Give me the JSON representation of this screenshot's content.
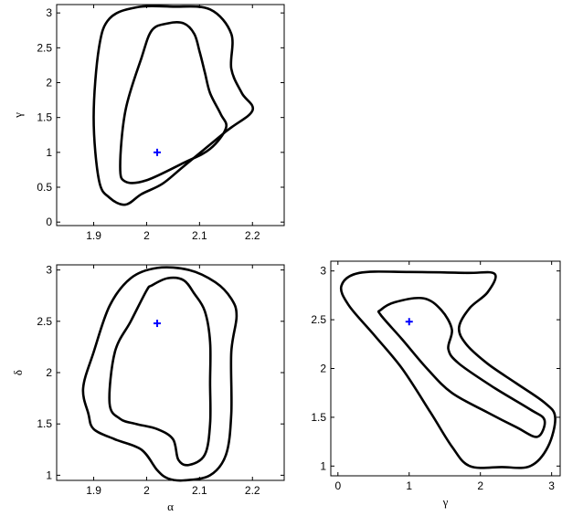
{
  "chart_data": [
    {
      "type": "contour",
      "xlabel": "",
      "ylabel": "γ",
      "xlim": [
        1.83,
        2.26
      ],
      "ylim": [
        -0.05,
        3.12
      ],
      "xticks": [
        "1.9",
        "2",
        "2.1",
        "2.2"
      ],
      "yticks": [
        "0",
        "0.5",
        "1",
        "1.5",
        "2",
        "2.5",
        "3"
      ],
      "xtick_values": [
        1.9,
        2.0,
        2.1,
        2.2
      ],
      "ytick_values": [
        0,
        0.5,
        1,
        1.5,
        2,
        2.5,
        3
      ],
      "marker": {
        "x": 2.02,
        "y": 1.0,
        "symbol": "+",
        "color": "#0000ff"
      },
      "contours": [
        {
          "level": "outer",
          "points": [
            [
              1.93,
              2.92
            ],
            [
              1.98,
              3.08
            ],
            [
              2.05,
              3.09
            ],
            [
              2.12,
              3.05
            ],
            [
              2.16,
              2.7
            ],
            [
              2.16,
              2.2
            ],
            [
              2.18,
              1.85
            ],
            [
              2.2,
              1.6
            ],
            [
              2.15,
              1.3
            ],
            [
              2.07,
              0.8
            ],
            [
              2.03,
              0.55
            ],
            [
              1.99,
              0.4
            ],
            [
              1.96,
              0.25
            ],
            [
              1.93,
              0.35
            ],
            [
              1.91,
              0.6
            ],
            [
              1.9,
              1.5
            ],
            [
              1.91,
              2.5
            ],
            [
              1.93,
              2.92
            ]
          ]
        },
        {
          "level": "inner",
          "points": [
            [
              2.01,
              2.75
            ],
            [
              2.04,
              2.85
            ],
            [
              2.07,
              2.85
            ],
            [
              2.09,
              2.7
            ],
            [
              2.1,
              2.45
            ],
            [
              2.11,
              2.15
            ],
            [
              2.12,
              1.85
            ],
            [
              2.14,
              1.55
            ],
            [
              2.15,
              1.35
            ],
            [
              2.12,
              1.05
            ],
            [
              2.07,
              0.85
            ],
            [
              2.0,
              0.6
            ],
            [
              1.96,
              0.58
            ],
            [
              1.95,
              0.8
            ],
            [
              1.96,
              1.6
            ],
            [
              1.99,
              2.35
            ],
            [
              2.01,
              2.75
            ]
          ]
        }
      ]
    },
    {
      "type": "contour",
      "xlabel": "α",
      "ylabel": "δ",
      "xlim": [
        1.83,
        2.26
      ],
      "ylim": [
        0.95,
        3.05
      ],
      "xticks": [
        "1.9",
        "2",
        "2.1",
        "2.2"
      ],
      "yticks": [
        "1",
        "1.5",
        "2",
        "2.5",
        "3"
      ],
      "xtick_values": [
        1.9,
        2.0,
        2.1,
        2.2
      ],
      "ytick_values": [
        1,
        1.5,
        2,
        2.5,
        3
      ],
      "marker": {
        "x": 2.02,
        "y": 2.48,
        "symbol": "+",
        "color": "#0000ff"
      },
      "contours": [
        {
          "level": "outer",
          "points": [
            [
              1.93,
              2.65
            ],
            [
              1.97,
              2.92
            ],
            [
              2.02,
              3.02
            ],
            [
              2.08,
              3.0
            ],
            [
              2.13,
              2.88
            ],
            [
              2.16,
              2.72
            ],
            [
              2.17,
              2.55
            ],
            [
              2.16,
              2.2
            ],
            [
              2.16,
              1.6
            ],
            [
              2.15,
              1.2
            ],
            [
              2.12,
              1.0
            ],
            [
              2.07,
              0.95
            ],
            [
              2.04,
              0.97
            ],
            [
              2.02,
              1.05
            ],
            [
              1.99,
              1.25
            ],
            [
              1.94,
              1.35
            ],
            [
              1.9,
              1.45
            ],
            [
              1.89,
              1.6
            ],
            [
              1.88,
              1.85
            ],
            [
              1.9,
              2.2
            ],
            [
              1.93,
              2.65
            ]
          ]
        },
        {
          "level": "inner",
          "points": [
            [
              2.01,
              2.85
            ],
            [
              2.04,
              2.92
            ],
            [
              2.07,
              2.9
            ],
            [
              2.09,
              2.77
            ],
            [
              2.11,
              2.6
            ],
            [
              2.12,
              2.3
            ],
            [
              2.12,
              1.9
            ],
            [
              2.12,
              1.5
            ],
            [
              2.11,
              1.2
            ],
            [
              2.08,
              1.1
            ],
            [
              2.06,
              1.15
            ],
            [
              2.05,
              1.35
            ],
            [
              2.02,
              1.45
            ],
            [
              1.98,
              1.5
            ],
            [
              1.95,
              1.55
            ],
            [
              1.93,
              1.7
            ],
            [
              1.94,
              2.2
            ],
            [
              1.97,
              2.5
            ],
            [
              2.0,
              2.8
            ],
            [
              2.01,
              2.85
            ]
          ]
        }
      ]
    },
    {
      "type": "contour",
      "xlabel": "γ",
      "ylabel": "",
      "xlim": [
        -0.1,
        3.12
      ],
      "ylim": [
        0.9,
        3.1
      ],
      "xticks": [
        "0",
        "1",
        "2",
        "3"
      ],
      "yticks": [
        "1",
        "1.5",
        "2",
        "2.5",
        "3"
      ],
      "xtick_values": [
        0,
        1,
        2,
        3
      ],
      "ytick_values": [
        1,
        1.5,
        2,
        2.5,
        3
      ],
      "marker": {
        "x": 1.0,
        "y": 2.48,
        "symbol": "+",
        "color": "#0000ff"
      },
      "contours": [
        {
          "level": "outer",
          "points": [
            [
              0.05,
              2.85
            ],
            [
              0.3,
              2.98
            ],
            [
              1.0,
              2.99
            ],
            [
              1.8,
              2.98
            ],
            [
              2.2,
              2.97
            ],
            [
              2.1,
              2.78
            ],
            [
              1.85,
              2.62
            ],
            [
              1.7,
              2.42
            ],
            [
              1.8,
              2.25
            ],
            [
              2.1,
              2.05
            ],
            [
              2.5,
              1.85
            ],
            [
              2.9,
              1.65
            ],
            [
              3.05,
              1.5
            ],
            [
              2.95,
              1.2
            ],
            [
              2.7,
              1.0
            ],
            [
              2.3,
              0.99
            ],
            [
              1.85,
              1.0
            ],
            [
              1.6,
              1.2
            ],
            [
              1.3,
              1.55
            ],
            [
              0.9,
              2.0
            ],
            [
              0.5,
              2.35
            ],
            [
              0.15,
              2.65
            ],
            [
              0.05,
              2.85
            ]
          ]
        },
        {
          "level": "inner",
          "points": [
            [
              0.6,
              2.6
            ],
            [
              0.8,
              2.68
            ],
            [
              1.2,
              2.72
            ],
            [
              1.45,
              2.6
            ],
            [
              1.6,
              2.4
            ],
            [
              1.55,
              2.2
            ],
            [
              1.7,
              2.05
            ],
            [
              2.2,
              1.8
            ],
            [
              2.7,
              1.58
            ],
            [
              2.9,
              1.47
            ],
            [
              2.8,
              1.3
            ],
            [
              2.5,
              1.4
            ],
            [
              2.1,
              1.55
            ],
            [
              1.6,
              1.75
            ],
            [
              1.25,
              2.0
            ],
            [
              0.9,
              2.3
            ],
            [
              0.6,
              2.55
            ],
            [
              0.6,
              2.6
            ]
          ]
        }
      ]
    }
  ]
}
